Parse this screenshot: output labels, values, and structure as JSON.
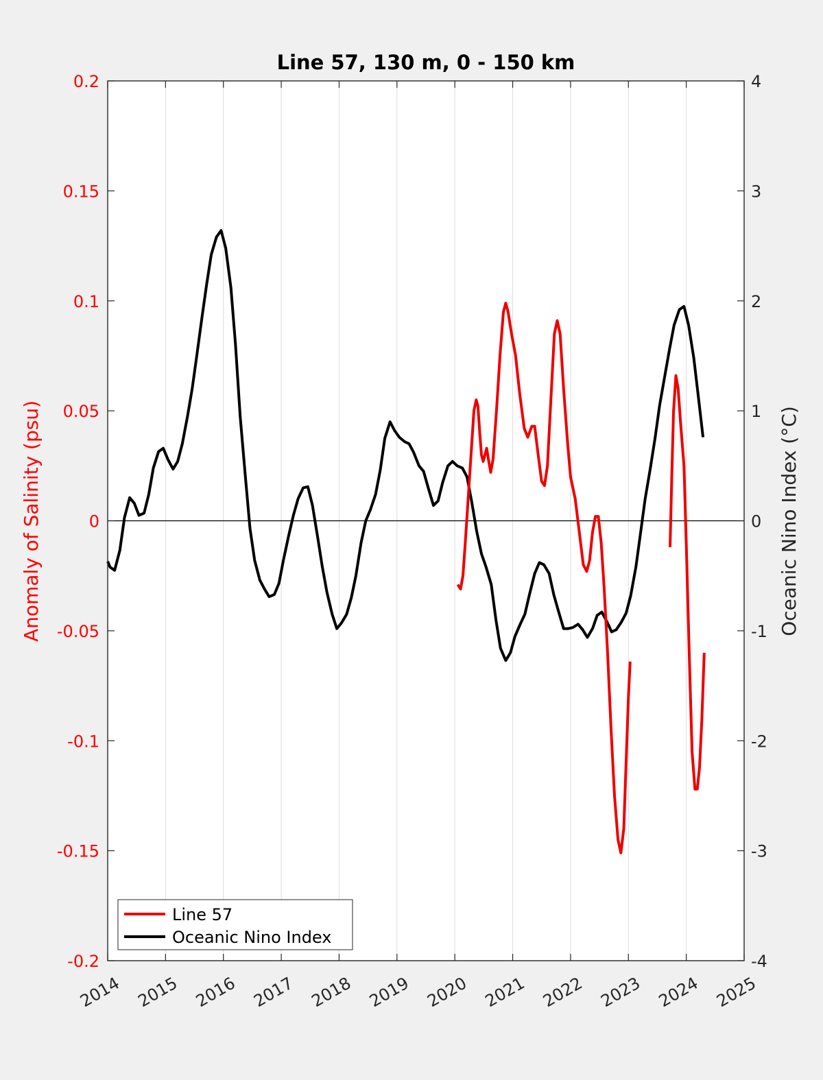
{
  "chart_data": {
    "type": "line",
    "title": "Line 57, 130 m, 0 - 150 km",
    "xlabel": "",
    "ylabel_left": "Anomaly of Salinity (psu)",
    "ylabel_right": "Oceanic Nino Index (°C)",
    "xlim": [
      2014,
      2025
    ],
    "ylim_left": [
      -0.2,
      0.2
    ],
    "ylim_right": [
      -4,
      4
    ],
    "x_ticks": [
      "2014",
      "2015",
      "2016",
      "2017",
      "2018",
      "2019",
      "2020",
      "2021",
      "2022",
      "2023",
      "2024",
      "2025"
    ],
    "y_ticks_left": [
      "-0.2",
      "-0.15",
      "-0.1",
      "-0.05",
      "0",
      "0.05",
      "0.1",
      "0.15",
      "0.2"
    ],
    "y_ticks_right": [
      "-4",
      "-3",
      "-2",
      "-1",
      "0",
      "1",
      "2",
      "3",
      "4"
    ],
    "grid": "vertical",
    "legend_position": "bottom-left",
    "colors": {
      "left_axis": "#ff0000",
      "line57": "#ee0000",
      "oni": "#000000"
    },
    "series": [
      {
        "name": "Line 57",
        "axis": "left",
        "segments": [
          [
            [
              2020.05,
              -0.029
            ],
            [
              2020.1,
              -0.031
            ],
            [
              2020.14,
              -0.025
            ],
            [
              2020.18,
              -0.01
            ],
            [
              2020.23,
              0.01
            ],
            [
              2020.28,
              0.03
            ],
            [
              2020.33,
              0.05
            ],
            [
              2020.37,
              0.055
            ],
            [
              2020.4,
              0.052
            ],
            [
              2020.43,
              0.04
            ],
            [
              2020.46,
              0.03
            ],
            [
              2020.49,
              0.027
            ],
            [
              2020.52,
              0.03
            ],
            [
              2020.55,
              0.033
            ],
            [
              2020.58,
              0.028
            ],
            [
              2020.62,
              0.022
            ],
            [
              2020.66,
              0.028
            ],
            [
              2020.72,
              0.05
            ],
            [
              2020.78,
              0.075
            ],
            [
              2020.84,
              0.095
            ],
            [
              2020.88,
              0.099
            ],
            [
              2020.92,
              0.095
            ],
            [
              2020.98,
              0.085
            ],
            [
              2021.05,
              0.075
            ],
            [
              2021.12,
              0.058
            ],
            [
              2021.2,
              0.042
            ],
            [
              2021.26,
              0.038
            ],
            [
              2021.33,
              0.043
            ],
            [
              2021.38,
              0.043
            ],
            [
              2021.44,
              0.03
            ],
            [
              2021.5,
              0.018
            ],
            [
              2021.55,
              0.016
            ],
            [
              2021.6,
              0.025
            ],
            [
              2021.66,
              0.055
            ],
            [
              2021.72,
              0.085
            ],
            [
              2021.77,
              0.091
            ],
            [
              2021.82,
              0.085
            ],
            [
              2021.88,
              0.06
            ],
            [
              2021.95,
              0.035
            ],
            [
              2022.0,
              0.02
            ],
            [
              2022.08,
              0.01
            ],
            [
              2022.15,
              -0.005
            ],
            [
              2022.22,
              -0.02
            ],
            [
              2022.28,
              -0.023
            ],
            [
              2022.33,
              -0.018
            ],
            [
              2022.38,
              -0.005
            ],
            [
              2022.43,
              0.002
            ],
            [
              2022.48,
              0.002
            ],
            [
              2022.53,
              -0.01
            ],
            [
              2022.58,
              -0.03
            ],
            [
              2022.64,
              -0.06
            ],
            [
              2022.7,
              -0.095
            ],
            [
              2022.76,
              -0.125
            ],
            [
              2022.82,
              -0.145
            ],
            [
              2022.87,
              -0.151
            ],
            [
              2022.92,
              -0.14
            ],
            [
              2022.96,
              -0.11
            ],
            [
              2023.0,
              -0.08
            ],
            [
              2023.03,
              -0.064
            ]
          ],
          [
            [
              2023.72,
              -0.012
            ],
            [
              2023.75,
              0.02
            ],
            [
              2023.78,
              0.05
            ],
            [
              2023.82,
              0.066
            ],
            [
              2023.86,
              0.06
            ],
            [
              2023.9,
              0.045
            ],
            [
              2023.96,
              0.025
            ],
            [
              2024.0,
              -0.01
            ],
            [
              2024.05,
              -0.06
            ],
            [
              2024.1,
              -0.105
            ],
            [
              2024.15,
              -0.122
            ],
            [
              2024.19,
              -0.122
            ],
            [
              2024.23,
              -0.112
            ],
            [
              2024.27,
              -0.09
            ],
            [
              2024.31,
              -0.06
            ]
          ]
        ]
      },
      {
        "name": "Oceanic Nino Index",
        "axis": "right",
        "segments": [
          [
            [
              2014.0,
              -0.37
            ],
            [
              2014.04,
              -0.42
            ],
            [
              2014.12,
              -0.45
            ],
            [
              2014.21,
              -0.27
            ],
            [
              2014.29,
              0.03
            ],
            [
              2014.38,
              0.21
            ],
            [
              2014.46,
              0.16
            ],
            [
              2014.54,
              0.05
            ],
            [
              2014.63,
              0.07
            ],
            [
              2014.71,
              0.24
            ],
            [
              2014.79,
              0.48
            ],
            [
              2014.88,
              0.63
            ],
            [
              2014.96,
              0.66
            ],
            [
              2015.04,
              0.56
            ],
            [
              2015.13,
              0.47
            ],
            [
              2015.21,
              0.54
            ],
            [
              2015.29,
              0.7
            ],
            [
              2015.38,
              0.95
            ],
            [
              2015.46,
              1.2
            ],
            [
              2015.54,
              1.5
            ],
            [
              2015.63,
              1.85
            ],
            [
              2015.71,
              2.15
            ],
            [
              2015.79,
              2.42
            ],
            [
              2015.88,
              2.58
            ],
            [
              2015.96,
              2.64
            ],
            [
              2016.04,
              2.48
            ],
            [
              2016.13,
              2.12
            ],
            [
              2016.21,
              1.6
            ],
            [
              2016.29,
              0.95
            ],
            [
              2016.38,
              0.4
            ],
            [
              2016.46,
              -0.07
            ],
            [
              2016.54,
              -0.36
            ],
            [
              2016.63,
              -0.54
            ],
            [
              2016.71,
              -0.62
            ],
            [
              2016.79,
              -0.69
            ],
            [
              2016.88,
              -0.67
            ],
            [
              2016.96,
              -0.57
            ],
            [
              2017.04,
              -0.35
            ],
            [
              2017.13,
              -0.13
            ],
            [
              2017.21,
              0.05
            ],
            [
              2017.29,
              0.2
            ],
            [
              2017.38,
              0.3
            ],
            [
              2017.46,
              0.31
            ],
            [
              2017.54,
              0.14
            ],
            [
              2017.63,
              -0.15
            ],
            [
              2017.71,
              -0.42
            ],
            [
              2017.79,
              -0.65
            ],
            [
              2017.88,
              -0.85
            ],
            [
              2017.96,
              -0.98
            ],
            [
              2018.04,
              -0.93
            ],
            [
              2018.13,
              -0.85
            ],
            [
              2018.21,
              -0.7
            ],
            [
              2018.29,
              -0.5
            ],
            [
              2018.38,
              -0.2
            ],
            [
              2018.46,
              0.0
            ],
            [
              2018.54,
              0.1
            ],
            [
              2018.63,
              0.24
            ],
            [
              2018.71,
              0.46
            ],
            [
              2018.79,
              0.75
            ],
            [
              2018.88,
              0.9
            ],
            [
              2018.96,
              0.82
            ],
            [
              2019.04,
              0.76
            ],
            [
              2019.13,
              0.72
            ],
            [
              2019.21,
              0.7
            ],
            [
              2019.29,
              0.62
            ],
            [
              2019.38,
              0.5
            ],
            [
              2019.46,
              0.45
            ],
            [
              2019.54,
              0.3
            ],
            [
              2019.63,
              0.14
            ],
            [
              2019.71,
              0.18
            ],
            [
              2019.79,
              0.35
            ],
            [
              2019.88,
              0.5
            ],
            [
              2019.96,
              0.54
            ],
            [
              2020.04,
              0.5
            ],
            [
              2020.13,
              0.48
            ],
            [
              2020.21,
              0.4
            ],
            [
              2020.29,
              0.18
            ],
            [
              2020.38,
              -0.1
            ],
            [
              2020.46,
              -0.3
            ],
            [
              2020.54,
              -0.42
            ],
            [
              2020.63,
              -0.58
            ],
            [
              2020.71,
              -0.9
            ],
            [
              2020.79,
              -1.16
            ],
            [
              2020.88,
              -1.27
            ],
            [
              2020.96,
              -1.2
            ],
            [
              2021.04,
              -1.05
            ],
            [
              2021.13,
              -0.94
            ],
            [
              2021.21,
              -0.85
            ],
            [
              2021.29,
              -0.67
            ],
            [
              2021.38,
              -0.48
            ],
            [
              2021.46,
              -0.38
            ],
            [
              2021.54,
              -0.4
            ],
            [
              2021.63,
              -0.48
            ],
            [
              2021.71,
              -0.67
            ],
            [
              2021.79,
              -0.82
            ],
            [
              2021.88,
              -0.98
            ],
            [
              2021.96,
              -0.98
            ],
            [
              2022.04,
              -0.97
            ],
            [
              2022.13,
              -0.94
            ],
            [
              2022.21,
              -0.99
            ],
            [
              2022.29,
              -1.06
            ],
            [
              2022.38,
              -0.98
            ],
            [
              2022.46,
              -0.86
            ],
            [
              2022.54,
              -0.83
            ],
            [
              2022.63,
              -0.92
            ],
            [
              2022.71,
              -1.01
            ],
            [
              2022.79,
              -0.99
            ],
            [
              2022.88,
              -0.92
            ],
            [
              2022.96,
              -0.84
            ],
            [
              2023.04,
              -0.68
            ],
            [
              2023.13,
              -0.42
            ],
            [
              2023.21,
              -0.11
            ],
            [
              2023.29,
              0.2
            ],
            [
              2023.38,
              0.48
            ],
            [
              2023.46,
              0.75
            ],
            [
              2023.54,
              1.05
            ],
            [
              2023.63,
              1.32
            ],
            [
              2023.71,
              1.56
            ],
            [
              2023.79,
              1.78
            ],
            [
              2023.88,
              1.92
            ],
            [
              2023.96,
              1.95
            ],
            [
              2024.04,
              1.78
            ],
            [
              2024.13,
              1.48
            ],
            [
              2024.21,
              1.12
            ],
            [
              2024.29,
              0.76
            ]
          ]
        ]
      }
    ]
  }
}
